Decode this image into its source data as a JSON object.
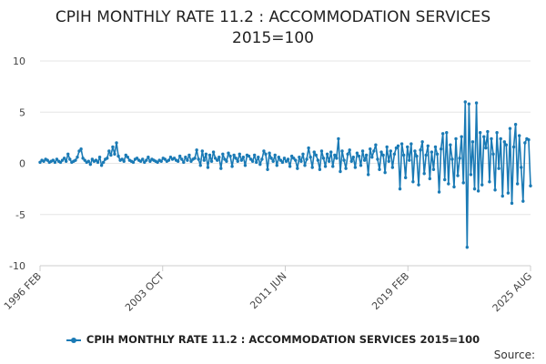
{
  "chart_data": {
    "type": "line",
    "title_line1": "CPIH MONTHLY RATE 11.2 : ACCOMMODATION SERVICES",
    "title_line2": "2015=100",
    "xlabel": "",
    "ylabel": "",
    "ylim": [
      -10,
      10
    ],
    "yticks": [
      "10",
      "5",
      "0",
      "-5",
      "-10"
    ],
    "x_tick_labels": [
      "1996 FEB",
      "2003 OCT",
      "2011 JUN",
      "2019 FEB",
      "2025 AUG"
    ],
    "x_range": [
      "1996 FEB",
      "2025 AUG"
    ],
    "grid": true,
    "legend_position": "bottom",
    "series": [
      {
        "name": "CPIH MONTHLY RATE 11.2 : ACCOMMODATION SERVICES 2015=100",
        "color": "#1a7ab5",
        "start": "1996 FEB",
        "values": [
          0.1,
          0.3,
          0.2,
          0.4,
          0.3,
          0.1,
          0.2,
          0.3,
          0.1,
          0.4,
          0.2,
          0.1,
          0.3,
          0.5,
          0.2,
          0.9,
          0.4,
          0.1,
          0.2,
          0.3,
          0.6,
          1.2,
          1.4,
          0.5,
          0.3,
          0.1,
          0.2,
          -0.1,
          0.4,
          0.2,
          0.3,
          0.1,
          0.6,
          -0.2,
          0.1,
          0.4,
          0.5,
          1.2,
          0.8,
          1.6,
          0.9,
          2.0,
          0.7,
          0.3,
          0.4,
          0.2,
          0.8,
          0.6,
          0.3,
          0.2,
          0.1,
          0.4,
          0.5,
          0.3,
          0.2,
          0.4,
          0.1,
          0.3,
          0.6,
          0.2,
          0.4,
          0.3,
          0.2,
          0.1,
          0.3,
          0.2,
          0.5,
          0.4,
          0.2,
          0.3,
          0.6,
          0.4,
          0.5,
          0.3,
          0.2,
          0.7,
          0.4,
          0.1,
          0.6,
          0.3,
          0.8,
          0.2,
          0.4,
          0.5,
          1.3,
          0.4,
          -0.2,
          1.2,
          0.3,
          0.9,
          -0.4,
          0.8,
          0.2,
          1.1,
          0.5,
          0.3,
          0.6,
          -0.5,
          0.9,
          0.4,
          0.2,
          1.0,
          0.7,
          -0.3,
          0.8,
          0.5,
          0.2,
          0.9,
          0.3,
          0.6,
          -0.2,
          0.8,
          0.7,
          0.4,
          0.2,
          0.8,
          0.1,
          0.6,
          -0.1,
          0.4,
          1.2,
          0.9,
          -0.6,
          1.0,
          0.5,
          0.2,
          0.8,
          -0.2,
          0.6,
          0.3,
          0.1,
          0.5,
          0.2,
          0.4,
          -0.3,
          0.7,
          0.5,
          0.3,
          -0.5,
          0.6,
          0.2,
          0.9,
          -0.2,
          0.4,
          1.5,
          0.6,
          -0.4,
          1.1,
          0.8,
          0.3,
          -0.6,
          1.2,
          0.5,
          -0.3,
          0.9,
          0.2,
          1.1,
          -0.3,
          0.8,
          0.5,
          2.4,
          -0.8,
          1.2,
          0.3,
          -0.5,
          0.9,
          1.3,
          0.2,
          0.6,
          -0.4,
          1.0,
          0.7,
          -0.2,
          1.2,
          0.3,
          0.8,
          -1.1,
          1.4,
          0.6,
          1.2,
          1.8,
          0.4,
          -0.6,
          1.1,
          0.8,
          -0.9,
          1.6,
          0.2,
          1.2,
          -0.4,
          0.9,
          1.5,
          1.7,
          -2.5,
          1.9,
          0.8,
          -1.4,
          1.6,
          0.3,
          1.9,
          -1.8,
          1.2,
          0.7,
          -2.1,
          1.3,
          2.1,
          -1.0,
          0.8,
          1.7,
          -1.5,
          1.1,
          -0.6,
          1.6,
          0.9,
          -2.8,
          1.4,
          2.9,
          -1.6,
          3.0,
          -2.0,
          1.8,
          0.4,
          -2.3,
          2.4,
          -1.2,
          0.5,
          2.6,
          -1.9,
          6.0,
          -8.2,
          5.8,
          -1.1,
          2.1,
          -2.5,
          5.9,
          -2.7,
          3.0,
          -2.1,
          2.6,
          1.5,
          3.1,
          -1.8,
          2.4,
          0.9,
          -2.6,
          3.0,
          -0.5,
          2.4,
          -3.2,
          2.1,
          1.8,
          -2.9,
          3.4,
          -3.9,
          1.6,
          3.8,
          -2.0,
          2.7,
          -0.4,
          -3.7,
          2.0,
          2.4,
          2.3,
          -2.2
        ]
      }
    ]
  },
  "legend_label": "CPIH MONTHLY RATE 11.2 : ACCOMMODATION SERVICES 2015=100",
  "source_label": "Source:"
}
